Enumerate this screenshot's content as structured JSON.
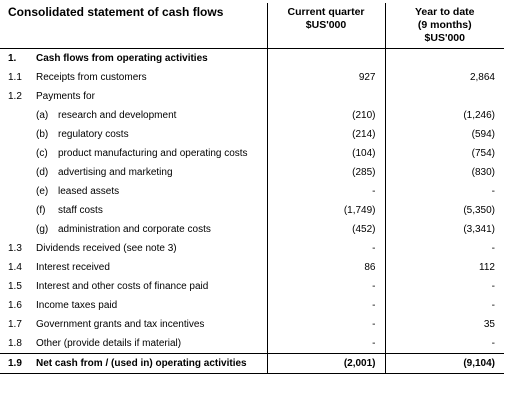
{
  "header": {
    "title": "Consolidated statement of cash flows",
    "current": [
      "Current quarter",
      "$US'000"
    ],
    "ytd": [
      "Year to date",
      "(9 months)",
      "$US'000"
    ]
  },
  "rows": [
    {
      "num": "1.",
      "label": "Cash flows from operating activities",
      "bold": true
    },
    {
      "num": "1.1",
      "label": "Receipts from customers",
      "current": "927",
      "ytd": "2,864"
    },
    {
      "num": "1.2",
      "label": "Payments for"
    },
    {
      "sub": "(a)",
      "label": "research and development",
      "current": "(210)",
      "ytd": "(1,246)"
    },
    {
      "sub": "(b)",
      "label": "regulatory costs",
      "current": "(214)",
      "ytd": "(594)"
    },
    {
      "sub": "(c)",
      "label": "product manufacturing and operating costs",
      "current": "(104)",
      "ytd": "(754)"
    },
    {
      "sub": "(d)",
      "label": "advertising and marketing",
      "current": "(285)",
      "ytd": "(830)"
    },
    {
      "sub": "(e)",
      "label": "leased assets",
      "current": "-",
      "ytd": "-"
    },
    {
      "sub": "(f)",
      "label": "staff costs",
      "current": "(1,749)",
      "ytd": "(5,350)"
    },
    {
      "sub": "(g)",
      "label": "administration and corporate costs",
      "current": "(452)",
      "ytd": "(3,341)"
    },
    {
      "num": "1.3",
      "label": "Dividends received (see note 3)",
      "current": "-",
      "ytd": "-"
    },
    {
      "num": "1.4",
      "label": "Interest received",
      "current": "86",
      "ytd": "112"
    },
    {
      "num": "1.5",
      "label": "Interest and other costs of finance paid",
      "current": "-",
      "ytd": "-"
    },
    {
      "num": "1.6",
      "label": "Income taxes paid",
      "current": "-",
      "ytd": "-"
    },
    {
      "num": "1.7",
      "label": "Government grants and tax incentives",
      "current": "-",
      "ytd": "35"
    },
    {
      "num": "1.8",
      "label": "Other (provide details if material)",
      "current": "-",
      "ytd": "-"
    },
    {
      "num": "1.9",
      "label": "Net cash from / (used in) operating activities",
      "current": "(2,001)",
      "ytd": "(9,104)",
      "bold": true,
      "total": true
    }
  ]
}
